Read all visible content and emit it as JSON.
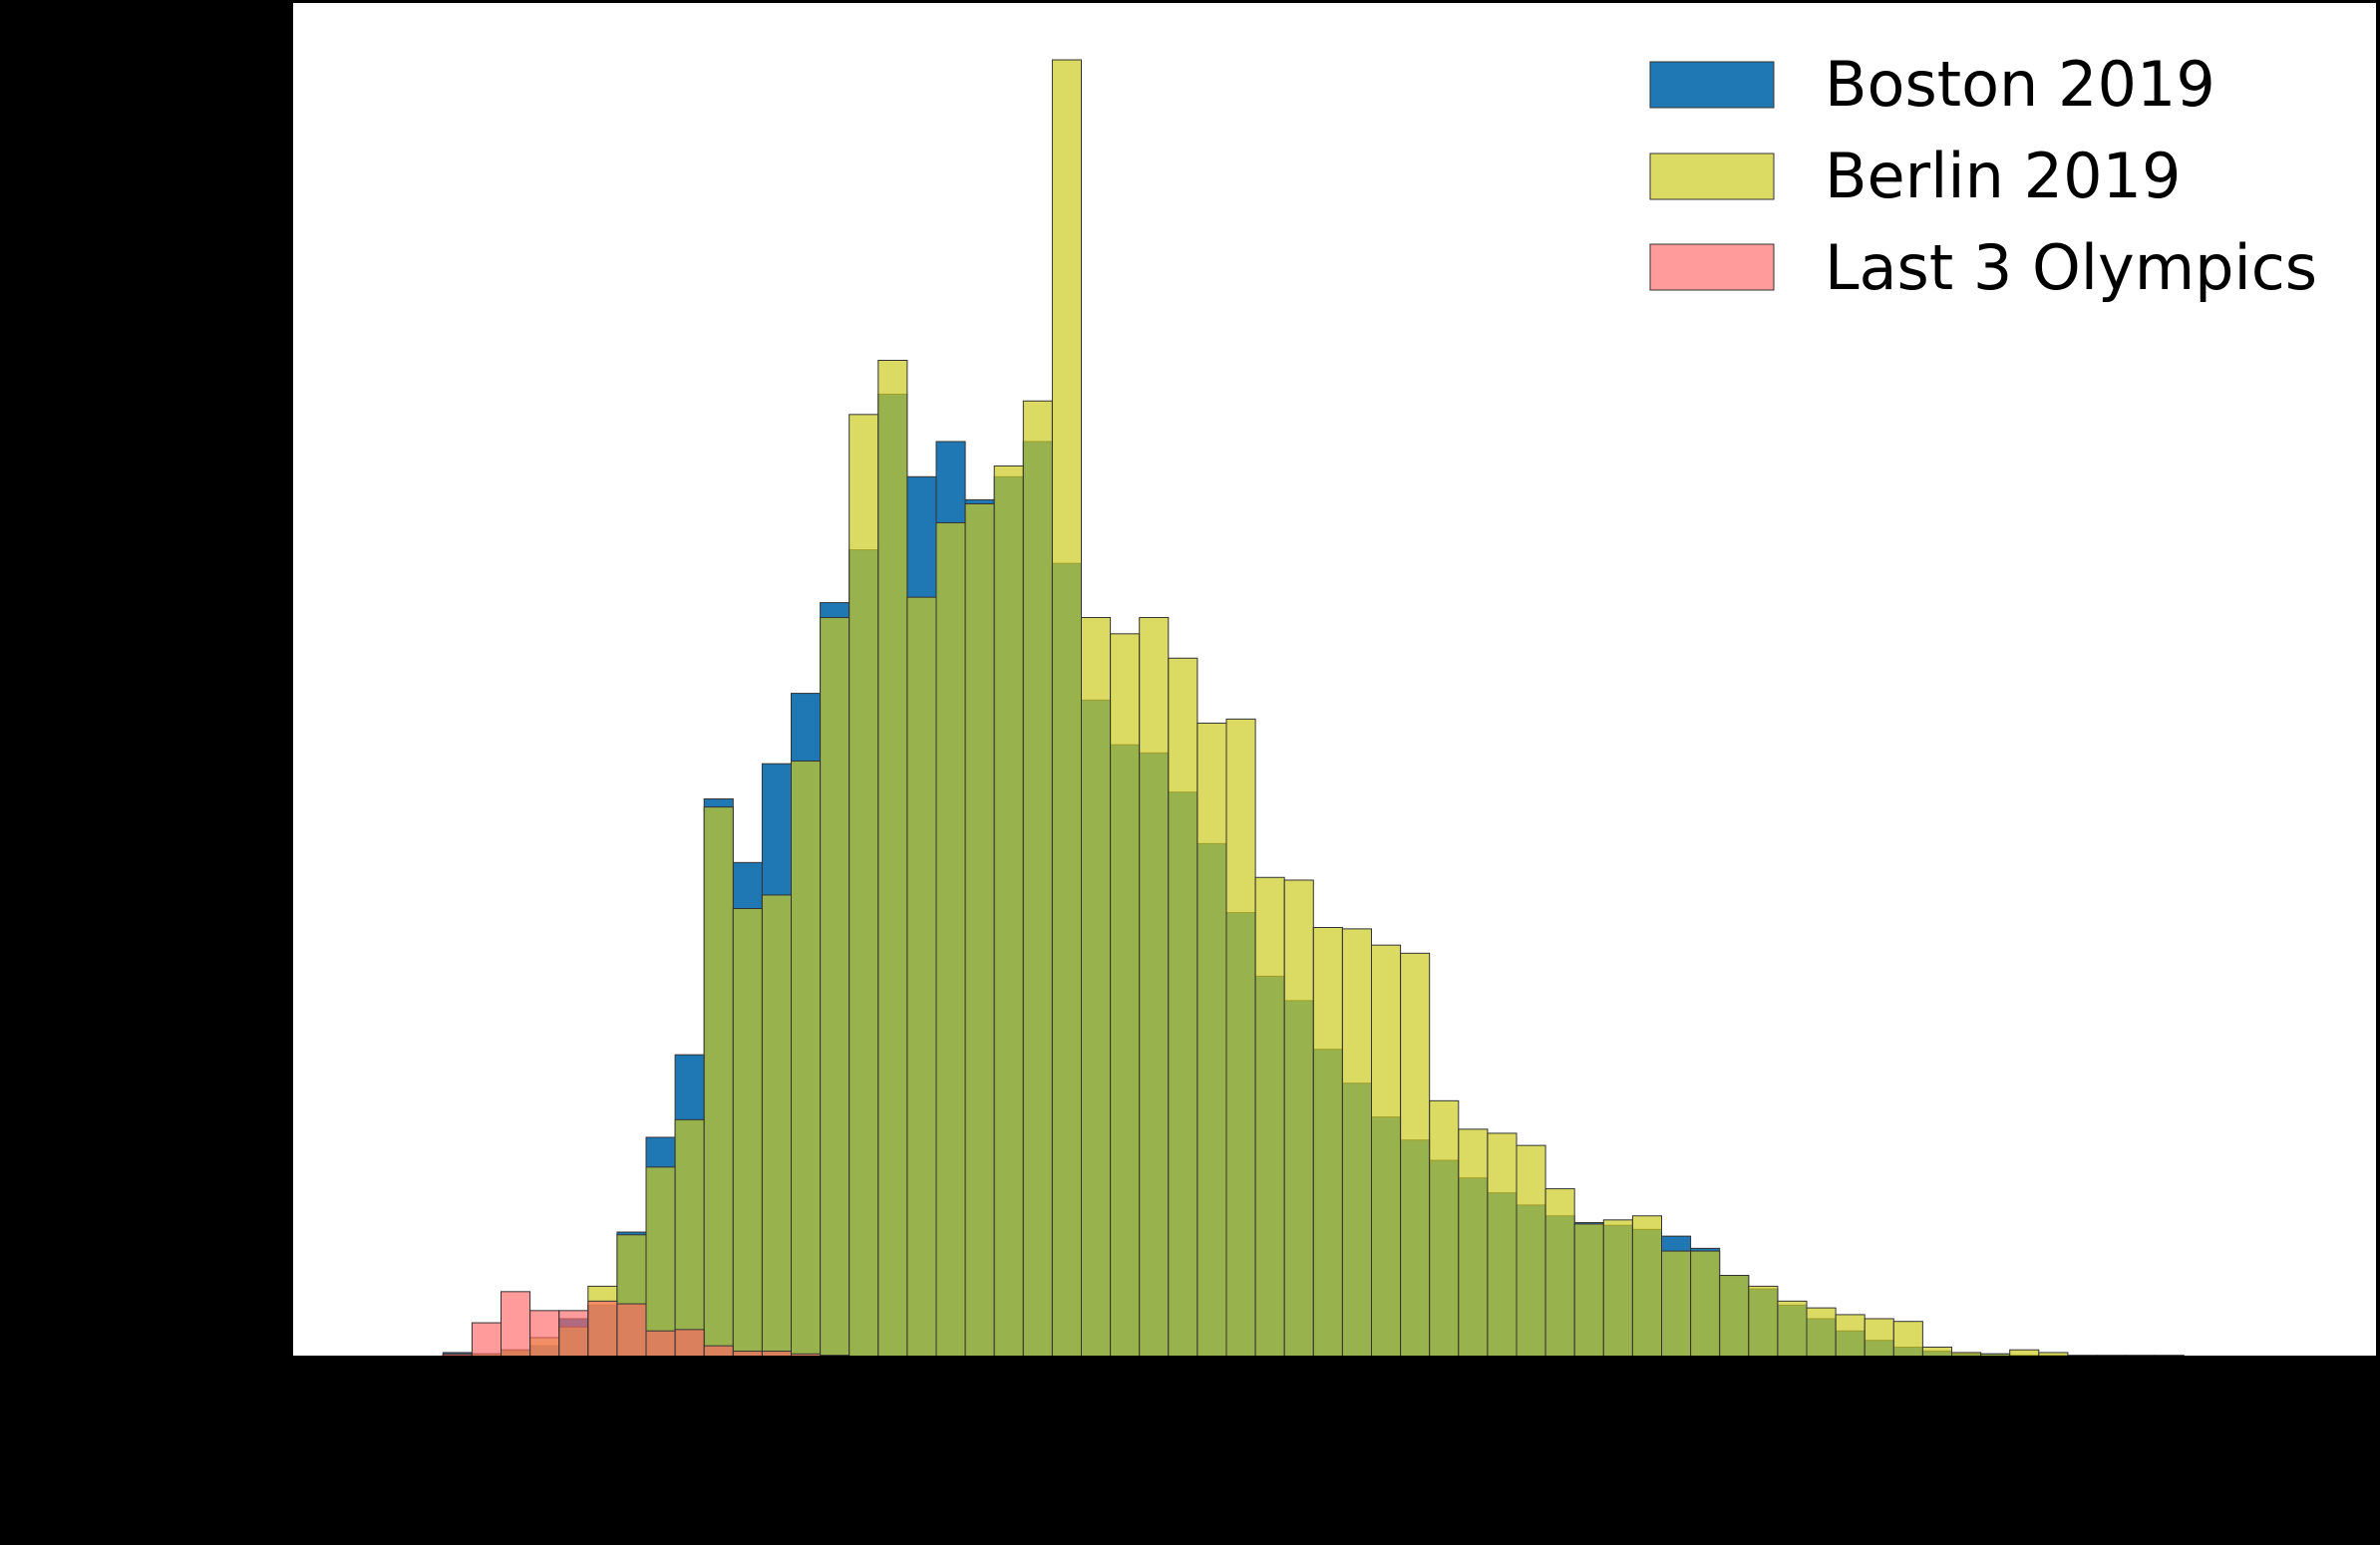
{
  "chart_data": {
    "type": "bar",
    "subtype": "overlapping-histogram",
    "x_bin_index_range": [
      0,
      64
    ],
    "ylim": [
      0,
      0.01
    ],
    "grid": false,
    "legend_position": "top-right",
    "series": [
      {
        "name": "Boston 2019",
        "color": "#1f77b4",
        "alpha": 1.0,
        "values": [
          0,
          0,
          0,
          3e-05,
          2e-05,
          4e-05,
          8e-05,
          0.00028,
          0.00038,
          0.00092,
          0.00162,
          0.00223,
          0.00412,
          0.00365,
          0.00438,
          0.0049,
          0.00557,
          0.00596,
          0.00711,
          0.0065,
          0.00676,
          0.00633,
          0.0065,
          0.00676,
          0.00586,
          0.00485,
          0.00452,
          0.00446,
          0.00417,
          0.00379,
          0.00328,
          0.00281,
          0.00263,
          0.00227,
          0.00202,
          0.00177,
          0.0016,
          0.00145,
          0.00132,
          0.00121,
          0.00112,
          0.00104,
          0.00099,
          0.00097,
          0.00094,
          0.00089,
          0.0008,
          0.0006,
          0.0005,
          0.00038,
          0.00028,
          0.00019,
          0.00012,
          7e-05,
          4e-05,
          2e-05,
          2e-05,
          1e-05,
          1e-05,
          0,
          0,
          0,
          0,
          0
        ]
      },
      {
        "name": "Berlin 2019",
        "color": "#cccc22",
        "alpha": 0.7,
        "values": [
          0,
          0,
          0,
          1e-05,
          2e-05,
          5e-05,
          0.00014,
          0.00022,
          0.00052,
          0.0009,
          0.0014,
          0.00175,
          0.00406,
          0.00331,
          0.00341,
          0.0044,
          0.00546,
          0.00696,
          0.00736,
          0.00561,
          0.00616,
          0.0063,
          0.00658,
          0.00706,
          0.00958,
          0.00546,
          0.00534,
          0.00546,
          0.00516,
          0.00468,
          0.00471,
          0.00354,
          0.00352,
          0.00317,
          0.00316,
          0.00304,
          0.00298,
          0.00189,
          0.00168,
          0.00165,
          0.00156,
          0.00124,
          0.00098,
          0.00101,
          0.00104,
          0.00078,
          0.00078,
          0.0006,
          0.00052,
          0.00041,
          0.00036,
          0.00031,
          0.00028,
          0.00026,
          7e-05,
          3e-05,
          2e-05,
          5e-05,
          3e-05,
          1e-05,
          1e-05,
          1e-05,
          1e-05,
          0
        ]
      },
      {
        "name": "Last 3 Olympics",
        "color": "#ff6666",
        "alpha": 0.65,
        "values": [
          0,
          0,
          0,
          2e-05,
          0.00025,
          0.00048,
          0.00034,
          0.00034,
          0.00041,
          0.00039,
          0.00019,
          0.0002,
          8e-05,
          4e-05,
          4e-05,
          2e-05,
          1e-05,
          0,
          0,
          0,
          0,
          0,
          0,
          0,
          0,
          0,
          0,
          0,
          0,
          0,
          0,
          0,
          0,
          0,
          0,
          0,
          0,
          0,
          0,
          0,
          0,
          0,
          0,
          0,
          0,
          0,
          0,
          0,
          0,
          0,
          0,
          0,
          0,
          0,
          0,
          0,
          0,
          0,
          0,
          0,
          0,
          0,
          0,
          0,
          0,
          0
        ]
      }
    ]
  }
}
